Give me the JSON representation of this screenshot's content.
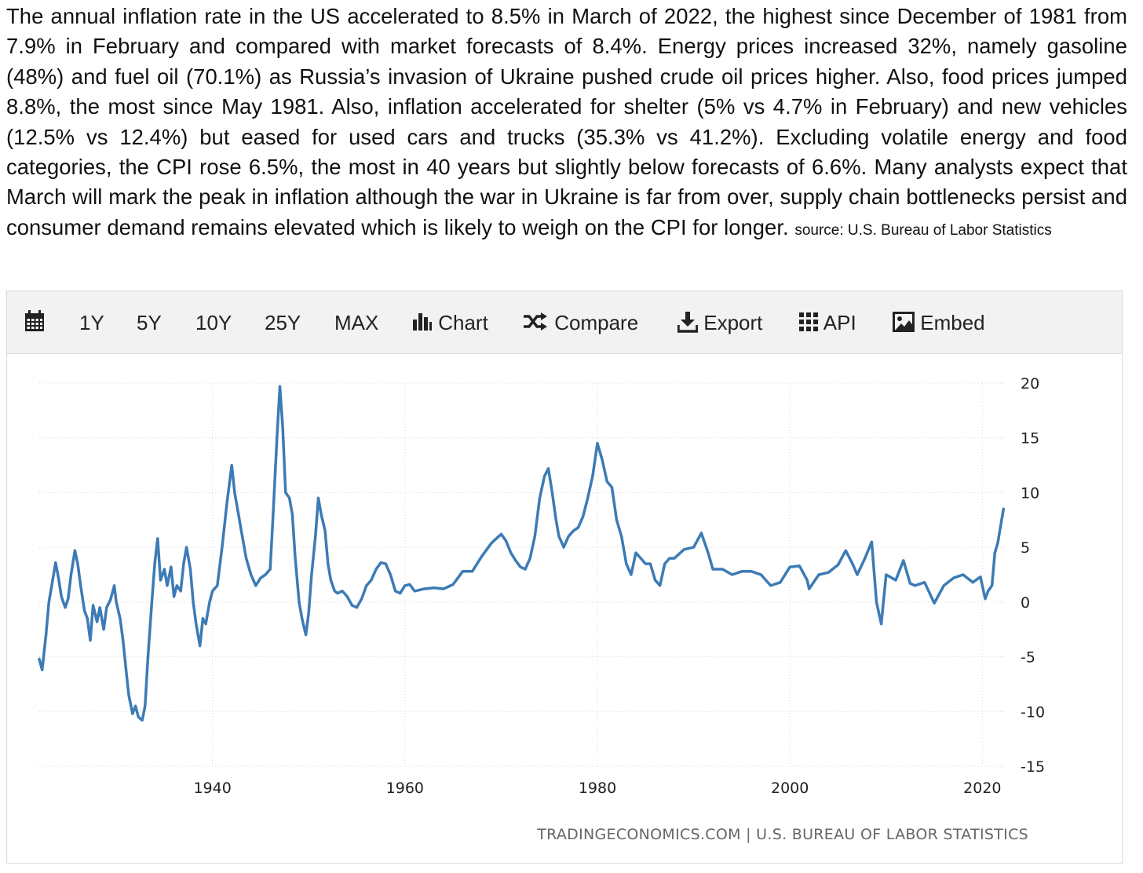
{
  "description": {
    "text": "The annual inflation rate in the US accelerated to 8.5% in March of 2022, the highest since December of 1981 from 7.9% in February and compared with market forecasts of 8.4%. Energy prices increased 32%, namely gasoline (48%) and fuel oil (70.1%) as Russia’s invasion of Ukraine pushed crude oil prices higher. Also, food prices jumped 8.8%, the most since May 1981. Also, inflation accelerated for shelter (5% vs 4.7% in February) and new vehicles (12.5% vs 12.4%) but eased for used cars and trucks (35.3% vs 41.2%). Excluding volatile energy and food categories, the CPI rose 6.5%, the most in 40 years but slightly below forecasts of 6.6%. Many analysts expect that March will mark the peak in inflation although the war in Ukraine is far from over, supply chain bottlenecks persist and consumer demand remains elevated which is likely to weigh on the CPI for longer.",
    "source": "source: U.S. Bureau of Labor Statistics"
  },
  "toolbar": {
    "calendar_icon": "calendar-icon",
    "ranges": [
      "1Y",
      "5Y",
      "10Y",
      "25Y",
      "MAX"
    ],
    "chart_label": "Chart",
    "compare_label": "Compare",
    "export_label": "Export",
    "api_label": "API",
    "embed_label": "Embed"
  },
  "colors": {
    "line": "#3c7bb5",
    "grid": "#d8d8d8",
    "toolbar_bg": "#f2f2f2",
    "credit": "#666666"
  },
  "chart_data": {
    "type": "line",
    "title": "",
    "xlabel": "",
    "ylabel": "",
    "xlim": [
      1922.0,
      2022.5
    ],
    "ylim": [
      -15,
      20
    ],
    "x_ticks": [
      1940,
      1960,
      1980,
      2000,
      2020
    ],
    "y_ticks": [
      20,
      15,
      10,
      5,
      0,
      -5,
      -10,
      -15
    ],
    "y_axis_position": "right",
    "grid": true,
    "credit": "TRADINGECONOMICS.COM | U.S. BUREAU OF LABOR STATISTICS",
    "series": [
      {
        "values": [
          [
            1922.0,
            -5.2
          ],
          [
            1922.3,
            -6.2
          ],
          [
            1922.7,
            -3
          ],
          [
            1923.0,
            0
          ],
          [
            1923.3,
            1.5
          ],
          [
            1923.7,
            3.6
          ],
          [
            1924.0,
            2.2
          ],
          [
            1924.3,
            0.5
          ],
          [
            1924.7,
            -0.5
          ],
          [
            1925.0,
            0.3
          ],
          [
            1925.3,
            2.5
          ],
          [
            1925.7,
            4.7
          ],
          [
            1926.0,
            3.5
          ],
          [
            1926.3,
            1.5
          ],
          [
            1926.7,
            -0.8
          ],
          [
            1927.0,
            -1.5
          ],
          [
            1927.3,
            -3.5
          ],
          [
            1927.6,
            -0.3
          ],
          [
            1928.0,
            -1.8
          ],
          [
            1928.3,
            -0.5
          ],
          [
            1928.7,
            -2.5
          ],
          [
            1929.0,
            -0.5
          ],
          [
            1929.4,
            0.2
          ],
          [
            1929.8,
            1.5
          ],
          [
            1930.0,
            0
          ],
          [
            1930.4,
            -1.5
          ],
          [
            1930.7,
            -3.5
          ],
          [
            1931.0,
            -6
          ],
          [
            1931.3,
            -8.5
          ],
          [
            1931.7,
            -10.2
          ],
          [
            1932.0,
            -9.5
          ],
          [
            1932.3,
            -10.5
          ],
          [
            1932.7,
            -10.8
          ],
          [
            1933.0,
            -9.5
          ],
          [
            1933.3,
            -5
          ],
          [
            1933.7,
            0
          ],
          [
            1934.0,
            3.5
          ],
          [
            1934.3,
            5.8
          ],
          [
            1934.6,
            2
          ],
          [
            1935.0,
            3
          ],
          [
            1935.3,
            1.5
          ],
          [
            1935.7,
            3.2
          ],
          [
            1936.0,
            0.5
          ],
          [
            1936.3,
            1.5
          ],
          [
            1936.7,
            1
          ],
          [
            1937.0,
            3.5
          ],
          [
            1937.3,
            5
          ],
          [
            1937.7,
            3
          ],
          [
            1938.0,
            0
          ],
          [
            1938.3,
            -2
          ],
          [
            1938.7,
            -4
          ],
          [
            1939.0,
            -1.5
          ],
          [
            1939.3,
            -2
          ],
          [
            1939.7,
            0
          ],
          [
            1940.0,
            1
          ],
          [
            1940.5,
            1.5
          ],
          [
            1941.0,
            5
          ],
          [
            1941.5,
            9
          ],
          [
            1942.0,
            12.5
          ],
          [
            1942.3,
            10
          ],
          [
            1942.7,
            8
          ],
          [
            1943.0,
            6.5
          ],
          [
            1943.5,
            4
          ],
          [
            1944.0,
            2.5
          ],
          [
            1944.5,
            1.5
          ],
          [
            1945.0,
            2.2
          ],
          [
            1945.5,
            2.5
          ],
          [
            1946.0,
            3
          ],
          [
            1946.3,
            8
          ],
          [
            1946.7,
            15
          ],
          [
            1947.0,
            19.7
          ],
          [
            1947.3,
            16
          ],
          [
            1947.6,
            10
          ],
          [
            1948.0,
            9.5
          ],
          [
            1948.3,
            8
          ],
          [
            1948.6,
            4
          ],
          [
            1949.0,
            0
          ],
          [
            1949.3,
            -1.5
          ],
          [
            1949.7,
            -3
          ],
          [
            1950.0,
            -1
          ],
          [
            1950.3,
            2.5
          ],
          [
            1950.7,
            6
          ],
          [
            1951.0,
            9.5
          ],
          [
            1951.3,
            8
          ],
          [
            1951.7,
            6.5
          ],
          [
            1952.0,
            3.5
          ],
          [
            1952.3,
            2
          ],
          [
            1952.7,
            1
          ],
          [
            1953.0,
            0.8
          ],
          [
            1953.5,
            1
          ],
          [
            1954.0,
            0.5
          ],
          [
            1954.5,
            -0.3
          ],
          [
            1955.0,
            -0.5
          ],
          [
            1955.5,
            0.3
          ],
          [
            1956.0,
            1.5
          ],
          [
            1956.5,
            2
          ],
          [
            1957.0,
            3
          ],
          [
            1957.5,
            3.6
          ],
          [
            1958.0,
            3.5
          ],
          [
            1958.5,
            2.5
          ],
          [
            1959.0,
            1
          ],
          [
            1959.5,
            0.8
          ],
          [
            1960.0,
            1.5
          ],
          [
            1960.5,
            1.6
          ],
          [
            1961.0,
            1
          ],
          [
            1962.0,
            1.2
          ],
          [
            1963.0,
            1.3
          ],
          [
            1964.0,
            1.2
          ],
          [
            1965.0,
            1.6
          ],
          [
            1966.0,
            2.8
          ],
          [
            1967.0,
            2.8
          ],
          [
            1968.0,
            4.2
          ],
          [
            1969.0,
            5.4
          ],
          [
            1970.0,
            6.2
          ],
          [
            1970.5,
            5.6
          ],
          [
            1971.0,
            4.5
          ],
          [
            1971.5,
            3.8
          ],
          [
            1972.0,
            3.2
          ],
          [
            1972.5,
            3
          ],
          [
            1973.0,
            4
          ],
          [
            1973.5,
            6
          ],
          [
            1974.0,
            9.5
          ],
          [
            1974.5,
            11.5
          ],
          [
            1974.9,
            12.2
          ],
          [
            1975.3,
            10
          ],
          [
            1975.7,
            7.5
          ],
          [
            1976.0,
            6
          ],
          [
            1976.5,
            5
          ],
          [
            1977.0,
            6
          ],
          [
            1977.5,
            6.5
          ],
          [
            1978.0,
            6.8
          ],
          [
            1978.5,
            7.8
          ],
          [
            1979.0,
            9.5
          ],
          [
            1979.5,
            11.5
          ],
          [
            1980.0,
            14.5
          ],
          [
            1980.5,
            13
          ],
          [
            1981.0,
            11
          ],
          [
            1981.5,
            10.5
          ],
          [
            1982.0,
            7.5
          ],
          [
            1982.5,
            6
          ],
          [
            1983.0,
            3.5
          ],
          [
            1983.5,
            2.5
          ],
          [
            1984.0,
            4.5
          ],
          [
            1984.5,
            4
          ],
          [
            1985.0,
            3.5
          ],
          [
            1985.5,
            3.5
          ],
          [
            1986.0,
            2
          ],
          [
            1986.5,
            1.5
          ],
          [
            1987.0,
            3.5
          ],
          [
            1987.5,
            4
          ],
          [
            1988.0,
            4
          ],
          [
            1989.0,
            4.8
          ],
          [
            1990.0,
            5
          ],
          [
            1990.8,
            6.3
          ],
          [
            1991.5,
            4.5
          ],
          [
            1992.0,
            3
          ],
          [
            1993.0,
            3
          ],
          [
            1994.0,
            2.5
          ],
          [
            1995.0,
            2.8
          ],
          [
            1996.0,
            2.8
          ],
          [
            1997.0,
            2.5
          ],
          [
            1998.0,
            1.5
          ],
          [
            1999.0,
            1.8
          ],
          [
            2000.0,
            3.2
          ],
          [
            2001.0,
            3.3
          ],
          [
            2001.8,
            2
          ],
          [
            2002.0,
            1.2
          ],
          [
            2003.0,
            2.5
          ],
          [
            2004.0,
            2.7
          ],
          [
            2005.0,
            3.4
          ],
          [
            2005.8,
            4.7
          ],
          [
            2006.5,
            3.5
          ],
          [
            2007.0,
            2.5
          ],
          [
            2007.8,
            4
          ],
          [
            2008.5,
            5.5
          ],
          [
            2009.0,
            0
          ],
          [
            2009.5,
            -2
          ],
          [
            2010.0,
            2.5
          ],
          [
            2011.0,
            2
          ],
          [
            2011.8,
            3.8
          ],
          [
            2012.5,
            1.7
          ],
          [
            2013.0,
            1.5
          ],
          [
            2014.0,
            1.8
          ],
          [
            2015.0,
            -0.1
          ],
          [
            2016.0,
            1.5
          ],
          [
            2017.0,
            2.2
          ],
          [
            2018.0,
            2.5
          ],
          [
            2019.0,
            1.8
          ],
          [
            2019.8,
            2.3
          ],
          [
            2020.3,
            0.3
          ],
          [
            2020.6,
            1
          ],
          [
            2021.0,
            1.5
          ],
          [
            2021.3,
            4.5
          ],
          [
            2021.6,
            5.4
          ],
          [
            2022.0,
            7.5
          ],
          [
            2022.2,
            8.5
          ]
        ]
      }
    ]
  }
}
